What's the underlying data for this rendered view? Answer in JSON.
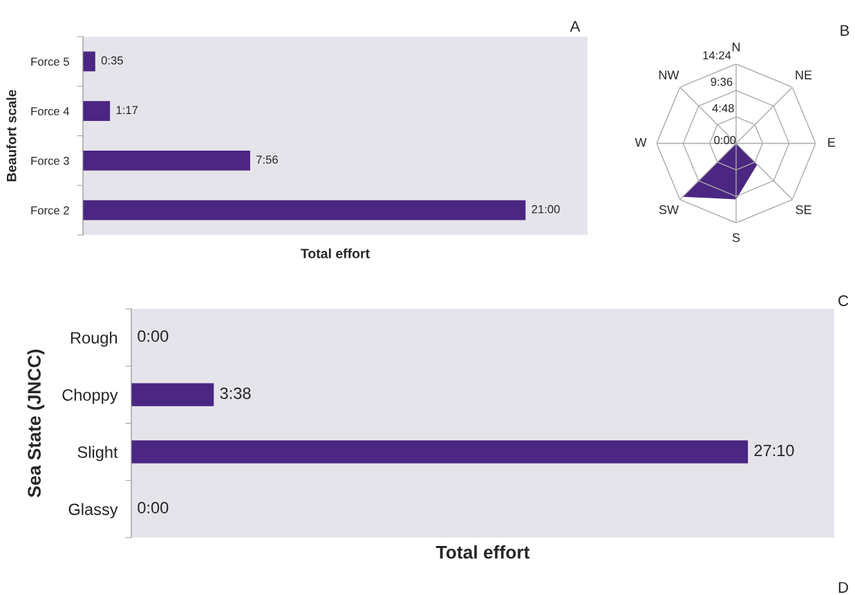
{
  "chart_data": [
    {
      "type": "bar",
      "orientation": "horizontal",
      "annotations": [
        "A"
      ],
      "xlabel": "Total effort",
      "ylabel": "Beaufort scale",
      "categories": [
        "Force 5",
        "Force 4",
        "Force 3",
        "Force 2"
      ],
      "values": [
        35,
        77,
        476,
        1260
      ],
      "value_labels": [
        "0:35",
        "1:17",
        "7:56",
        "21:00"
      ],
      "color": "#4b2682",
      "tick_labels": "y",
      "grid": false,
      "legend": false
    },
    {
      "type": "radar",
      "annotations": [
        "B"
      ],
      "categories": [
        "N",
        "NE",
        "E",
        "SE",
        "S",
        "SW",
        "W",
        "NW"
      ],
      "series": [
        {
          "color": "#4b2682",
          "values": [
            0,
            0,
            0,
            324,
            608,
            820,
            0,
            0
          ]
        }
      ],
      "ylim": [
        0,
        864
      ],
      "yticks": [
        {
          "value": 0,
          "label": "0:00"
        },
        {
          "value": 288,
          "label": "4:48"
        },
        {
          "value": 576,
          "label": "9:36"
        },
        {
          "value": 864,
          "label": "14:24"
        }
      ],
      "grid": true
    },
    {
      "type": "bar",
      "orientation": "horizontal",
      "annotations": [
        "C",
        "D"
      ],
      "xlabel": "Total effort",
      "ylabel": "Sea State (JNCC)",
      "categories": [
        "Rough",
        "Choppy",
        "Slight",
        "Glassy"
      ],
      "values": [
        0,
        218,
        1630,
        0
      ],
      "value_labels": [
        "0:00",
        "3:38",
        "27:10",
        "0:00"
      ],
      "color": "#4b2682",
      "tick_labels": "y",
      "grid": false,
      "legend": false
    }
  ]
}
